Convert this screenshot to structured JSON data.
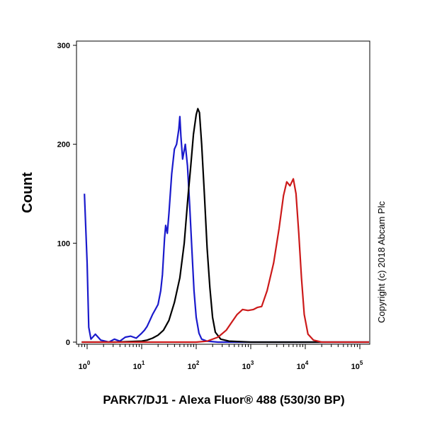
{
  "chart_data": {
    "type": "line",
    "title": "",
    "xlabel": "PARK7/DJ1 - Alexa Fluor® 488 (530/30 BP)",
    "ylabel": "Count",
    "xscale": "log",
    "ylim": [
      0,
      300
    ],
    "yticks": [
      0,
      100,
      200,
      300
    ],
    "xtick_labels": [
      {
        "base": "10",
        "exp": "0"
      },
      {
        "base": "10",
        "exp": "1"
      },
      {
        "base": "10",
        "exp": "2"
      },
      {
        "base": "10",
        "exp": "3"
      },
      {
        "base": "10",
        "exp": "4"
      },
      {
        "base": "10",
        "exp": "5"
      }
    ],
    "grid": false,
    "legend": "none",
    "annotation": "Copyright (c) 2018 Abcam Plc",
    "series": [
      {
        "color": "#1a1acc",
        "points": [
          [
            -0.05,
            150
          ],
          [
            0.0,
            80
          ],
          [
            0.03,
            15
          ],
          [
            0.07,
            3
          ],
          [
            0.15,
            8
          ],
          [
            0.25,
            2
          ],
          [
            0.4,
            0
          ],
          [
            0.5,
            3
          ],
          [
            0.6,
            1
          ],
          [
            0.7,
            5
          ],
          [
            0.8,
            6
          ],
          [
            0.9,
            4
          ],
          [
            1.0,
            9
          ],
          [
            1.05,
            12
          ],
          [
            1.1,
            16
          ],
          [
            1.15,
            22
          ],
          [
            1.2,
            28
          ],
          [
            1.25,
            33
          ],
          [
            1.3,
            38
          ],
          [
            1.35,
            52
          ],
          [
            1.38,
            68
          ],
          [
            1.42,
            105
          ],
          [
            1.44,
            118
          ],
          [
            1.47,
            110
          ],
          [
            1.5,
            130
          ],
          [
            1.55,
            170
          ],
          [
            1.6,
            195
          ],
          [
            1.64,
            200
          ],
          [
            1.68,
            215
          ],
          [
            1.7,
            228
          ],
          [
            1.72,
            208
          ],
          [
            1.75,
            185
          ],
          [
            1.8,
            200
          ],
          [
            1.84,
            178
          ],
          [
            1.88,
            138
          ],
          [
            1.92,
            95
          ],
          [
            1.96,
            52
          ],
          [
            2.0,
            25
          ],
          [
            2.05,
            9
          ],
          [
            2.1,
            3
          ],
          [
            2.2,
            1
          ],
          [
            2.4,
            0
          ],
          [
            3.0,
            0
          ],
          [
            4.0,
            0
          ],
          [
            5.5,
            0
          ]
        ]
      },
      {
        "color": "#000000",
        "points": [
          [
            -0.1,
            0
          ],
          [
            0.5,
            0
          ],
          [
            1.0,
            1
          ],
          [
            1.1,
            2
          ],
          [
            1.2,
            4
          ],
          [
            1.3,
            7
          ],
          [
            1.4,
            12
          ],
          [
            1.5,
            22
          ],
          [
            1.6,
            40
          ],
          [
            1.7,
            65
          ],
          [
            1.78,
            100
          ],
          [
            1.85,
            148
          ],
          [
            1.9,
            178
          ],
          [
            1.95,
            210
          ],
          [
            2.0,
            230
          ],
          [
            2.03,
            236
          ],
          [
            2.06,
            232
          ],
          [
            2.1,
            200
          ],
          [
            2.15,
            150
          ],
          [
            2.2,
            95
          ],
          [
            2.25,
            55
          ],
          [
            2.3,
            25
          ],
          [
            2.35,
            10
          ],
          [
            2.45,
            3
          ],
          [
            2.6,
            1
          ],
          [
            3.0,
            0
          ],
          [
            5.5,
            0
          ]
        ]
      },
      {
        "color": "#cc1a1a",
        "points": [
          [
            -0.1,
            0
          ],
          [
            2.0,
            0
          ],
          [
            2.2,
            1
          ],
          [
            2.4,
            5
          ],
          [
            2.55,
            12
          ],
          [
            2.65,
            20
          ],
          [
            2.75,
            28
          ],
          [
            2.85,
            33
          ],
          [
            2.95,
            32
          ],
          [
            3.05,
            33
          ],
          [
            3.12,
            35
          ],
          [
            3.2,
            36
          ],
          [
            3.3,
            52
          ],
          [
            3.42,
            80
          ],
          [
            3.52,
            115
          ],
          [
            3.6,
            148
          ],
          [
            3.66,
            162
          ],
          [
            3.72,
            158
          ],
          [
            3.78,
            165
          ],
          [
            3.83,
            150
          ],
          [
            3.88,
            110
          ],
          [
            3.93,
            65
          ],
          [
            3.98,
            28
          ],
          [
            4.05,
            8
          ],
          [
            4.15,
            2
          ],
          [
            4.3,
            0
          ],
          [
            5.5,
            0
          ]
        ]
      }
    ]
  }
}
